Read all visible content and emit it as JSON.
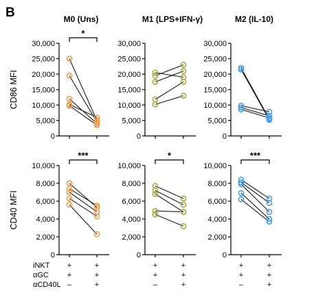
{
  "panel_letter": "B",
  "conditions": {
    "labels": [
      "iNKT",
      "αGC",
      "αCD40L"
    ],
    "groups": [
      [
        [
          "+",
          "+"
        ],
        [
          "+",
          "+"
        ],
        [
          "–",
          "+"
        ]
      ],
      [
        [
          "+",
          "+"
        ],
        [
          "+",
          "+"
        ],
        [
          "–",
          "+"
        ]
      ],
      [
        [
          "+",
          "+"
        ],
        [
          "+",
          "+"
        ],
        [
          "–",
          "+"
        ]
      ]
    ]
  },
  "chart_data": [
    {
      "type": "line",
      "title": "M0 (Uns)",
      "ylabel": "CD86 MFI",
      "ylim": [
        0,
        30000
      ],
      "yticks": [
        "0",
        "5,000",
        "10,000",
        "15,000",
        "20,000",
        "25,000",
        "30,000"
      ],
      "color": "#f39c4a",
      "pairs": [
        [
          25000,
          5000
        ],
        [
          19500,
          4500
        ],
        [
          12000,
          4000
        ],
        [
          10200,
          6000
        ],
        [
          9800,
          3500
        ]
      ],
      "significance": "*"
    },
    {
      "type": "line",
      "title": "M1 (LPS+IFN-γ)",
      "ylabel": "",
      "ylim": [
        0,
        30000
      ],
      "yticks": [
        "0",
        "5,000",
        "10,000",
        "15,000",
        "20,000",
        "25,000",
        "30,000"
      ],
      "color": "#aaa843",
      "pairs": [
        [
          20500,
          19000
        ],
        [
          19500,
          23000
        ],
        [
          17500,
          21000
        ],
        [
          11800,
          17500
        ],
        [
          10200,
          13000
        ]
      ],
      "significance": ""
    },
    {
      "type": "line",
      "title": "M2 (IL-10)",
      "ylabel": "",
      "ylim": [
        0,
        30000
      ],
      "yticks": [
        "0",
        "5,000",
        "10,000",
        "15,000",
        "20,000",
        "25,000",
        "30,000"
      ],
      "color": "#4a9fe0",
      "pairs": [
        [
          22000,
          5500
        ],
        [
          21500,
          5200
        ],
        [
          9800,
          7800
        ],
        [
          9200,
          6500
        ],
        [
          8600,
          5800
        ]
      ],
      "significance": ""
    },
    {
      "type": "line",
      "title": "",
      "ylabel": "CD40 MFI",
      "ylim": [
        0,
        10000
      ],
      "yticks": [
        "0",
        "2,000",
        "4,000",
        "6,000",
        "8,000",
        "10,000"
      ],
      "color": "#f39c4a",
      "pairs": [
        [
          8000,
          5300
        ],
        [
          7400,
          5500
        ],
        [
          7000,
          4800
        ],
        [
          6300,
          4300
        ],
        [
          5600,
          2300
        ]
      ],
      "significance": "***"
    },
    {
      "type": "line",
      "title": "",
      "ylabel": "",
      "ylim": [
        0,
        10000
      ],
      "yticks": [
        "0",
        "2,000",
        "4,000",
        "6,000",
        "8,000",
        "10,000"
      ],
      "color": "#aaa843",
      "pairs": [
        [
          7700,
          6300
        ],
        [
          7200,
          5600
        ],
        [
          6800,
          4800
        ],
        [
          4900,
          4800
        ],
        [
          4500,
          3200
        ]
      ],
      "significance": "*"
    },
    {
      "type": "line",
      "title": "",
      "ylabel": "",
      "ylim": [
        0,
        10000
      ],
      "yticks": [
        "0",
        "2,000",
        "4,000",
        "6,000",
        "8,000",
        "10,000"
      ],
      "color": "#4a9fe0",
      "pairs": [
        [
          8400,
          6300
        ],
        [
          8100,
          5800
        ],
        [
          7900,
          4800
        ],
        [
          6900,
          4000
        ],
        [
          6200,
          3700
        ]
      ],
      "significance": "***"
    }
  ]
}
